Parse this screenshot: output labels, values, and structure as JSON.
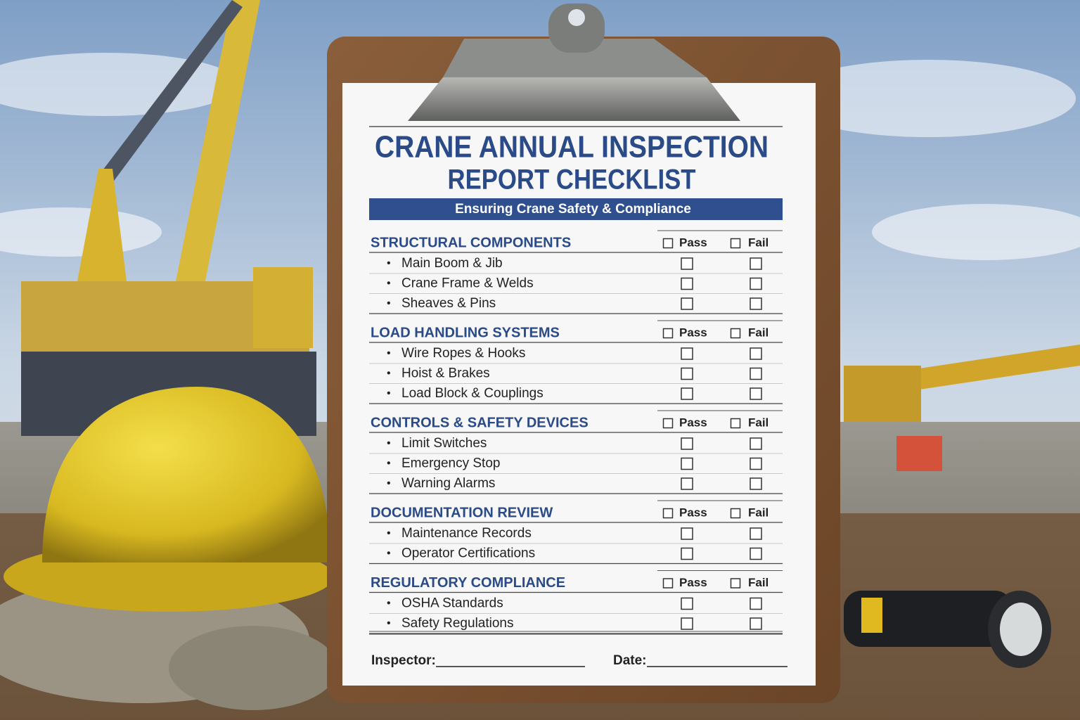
{
  "title_line1": "CRANE ANNUAL INSPECTION",
  "title_line2": "REPORT CHECKLIST",
  "subtitle": "Ensuring Crane Safety & Compliance",
  "sections": [
    {
      "heading": "STRUCTURAL COMPONENTS",
      "pass": "Pass",
      "fail": "Fail",
      "items": [
        "Main Boom & Jib",
        "Crane Frame & Welds",
        "Sheaves & Pins"
      ]
    },
    {
      "heading": "LOAD HANDLING SYSTEMS",
      "pass": "Pass",
      "fail": "Fail",
      "items": [
        "Wire Ropes & Hooks",
        "Hoist & Brakes",
        "Load Block & Couplings"
      ]
    },
    {
      "heading": "CONTROLS & SAFETY DEVICES",
      "pass": "Pass",
      "fail": "Fail",
      "items": [
        "Limit Switches",
        "Emergency Stop",
        "Warning Alarms"
      ]
    },
    {
      "heading": "DOCUMENTATION REVIEW",
      "pass": "Pass",
      "fail": "Fail",
      "items": [
        "Maintenance Records",
        "Operator Certifications"
      ]
    },
    {
      "heading": "REGULATORY COMPLIANCE",
      "pass": "Pass",
      "fail": "Fail",
      "items": [
        "OSHA Standards",
        "Safety Regulations"
      ]
    }
  ],
  "footer": {
    "inspector": "Inspector:",
    "date": "Date:"
  }
}
